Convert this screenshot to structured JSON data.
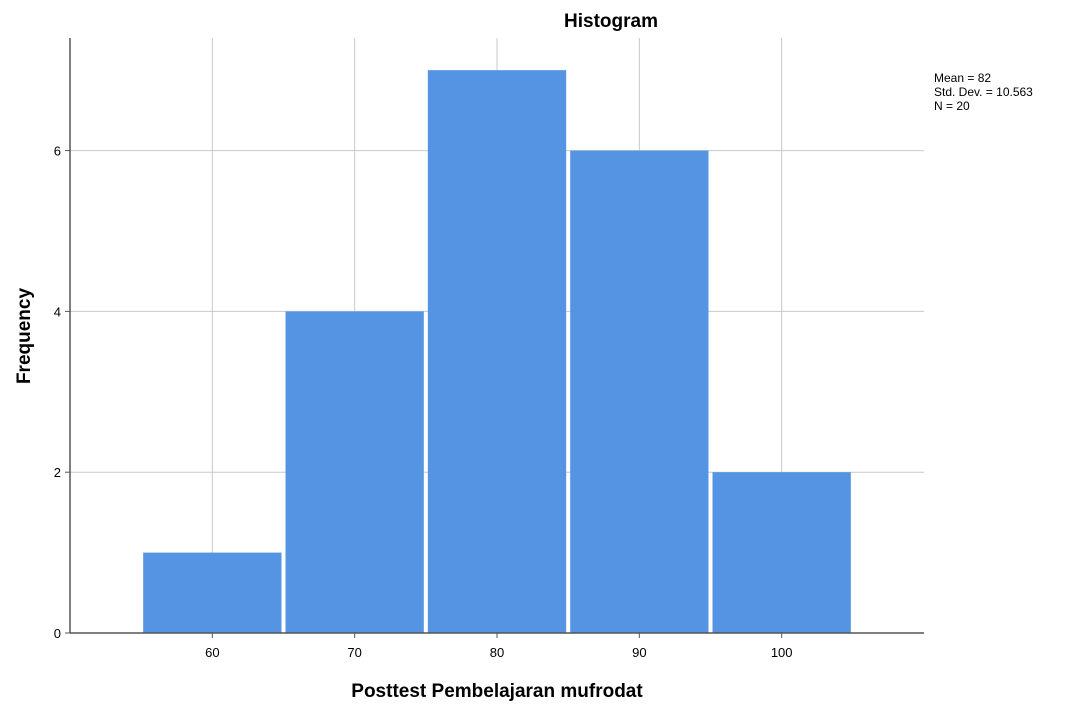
{
  "chart_data": {
    "type": "bar",
    "title": "Histogram",
    "xlabel": "Posttest Pembelajaran mufrodat",
    "ylabel": "Frequency",
    "categories": [
      "60",
      "70",
      "80",
      "90",
      "100"
    ],
    "x": [
      60,
      70,
      80,
      90,
      100
    ],
    "values": [
      1,
      4,
      7,
      6,
      2
    ],
    "bin_width": 10,
    "xlim": [
      50,
      110
    ],
    "ylim": [
      0,
      7.4
    ],
    "yticks": [
      0,
      2,
      4,
      6
    ],
    "grid": true,
    "bar_color": "#5594E3",
    "legend_position": "top-right",
    "stats": {
      "mean": "Mean = 82",
      "std_dev": "Std. Dev. = 10.563",
      "n": "N = 20"
    }
  }
}
